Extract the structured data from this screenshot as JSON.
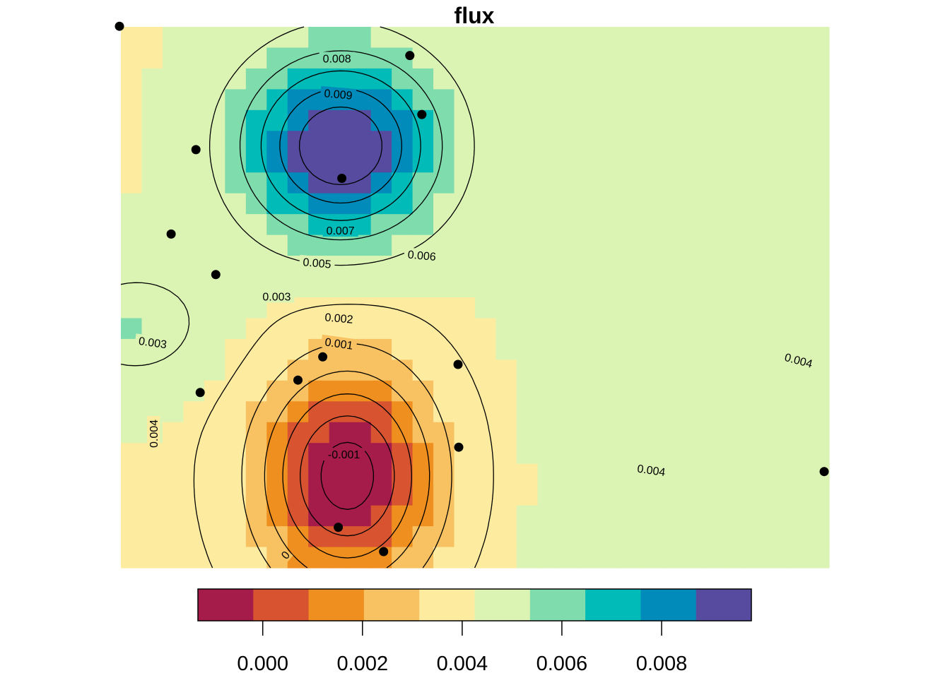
{
  "chart_data": {
    "type": "heatmap",
    "title": "flux",
    "xlabel": "",
    "ylabel": "",
    "colorbar": {
      "min": -0.0013,
      "max": 0.0098,
      "bin_colors": [
        "#a51c4a",
        "#d8532f",
        "#ef8f1f",
        "#f8c262",
        "#fdeba0",
        "#dcf4b3",
        "#7fdcad",
        "#00bbb7",
        "#008bba",
        "#574ba0"
      ],
      "tick_values": [
        0.0,
        0.002,
        0.004,
        0.006,
        0.008
      ],
      "tick_labels": [
        "0.000",
        "0.002",
        "0.004",
        "0.006",
        "0.008"
      ]
    },
    "field": {
      "base": 0.0042,
      "east_offset": 0.0002,
      "peaks": [
        {
          "cx": 0.31,
          "cy": 0.22,
          "sx": 0.13,
          "sy": 0.16,
          "amp": 0.0058
        },
        {
          "cx": 0.32,
          "cy": 0.83,
          "sx": 0.12,
          "sy": 0.2,
          "amp": -0.0058
        },
        {
          "cx": 0.02,
          "cy": 0.55,
          "sx": 0.12,
          "sy": 0.12,
          "amp": 0.0012
        }
      ]
    },
    "contour_labels": [
      {
        "text": "0.008",
        "x": 0.305,
        "y": 0.058,
        "angle": 0
      },
      {
        "text": "0.009",
        "x": 0.307,
        "y": 0.124,
        "angle": 5
      },
      {
        "text": "0.007",
        "x": 0.31,
        "y": 0.376,
        "angle": 0
      },
      {
        "text": "0.006",
        "x": 0.425,
        "y": 0.422,
        "angle": 5
      },
      {
        "text": "0.005",
        "x": 0.277,
        "y": 0.436,
        "angle": 5
      },
      {
        "text": "0.003",
        "x": 0.22,
        "y": 0.498,
        "angle": 0
      },
      {
        "text": "0.002",
        "x": 0.308,
        "y": 0.538,
        "angle": 5
      },
      {
        "text": "0.001",
        "x": 0.308,
        "y": 0.585,
        "angle": 8
      },
      {
        "text": "0.003",
        "x": 0.045,
        "y": 0.583,
        "angle": 8
      },
      {
        "text": "0.004",
        "x": 0.957,
        "y": 0.616,
        "angle": 15
      },
      {
        "text": "0.004",
        "x": 0.046,
        "y": 0.752,
        "angle": -90
      },
      {
        "text": "-0.001",
        "x": 0.315,
        "y": 0.79,
        "angle": 0
      },
      {
        "text": "0.004",
        "x": 0.749,
        "y": 0.819,
        "angle": 8
      },
      {
        "text": "0",
        "x": 0.232,
        "y": 0.976,
        "angle": -50
      }
    ],
    "points": [
      {
        "x": -0.002,
        "y": -0.001
      },
      {
        "x": 0.408,
        "y": 0.053
      },
      {
        "x": 0.425,
        "y": 0.162
      },
      {
        "x": 0.106,
        "y": 0.227
      },
      {
        "x": 0.312,
        "y": 0.28
      },
      {
        "x": 0.071,
        "y": 0.383
      },
      {
        "x": 0.134,
        "y": 0.458
      },
      {
        "x": 0.285,
        "y": 0.61
      },
      {
        "x": 0.476,
        "y": 0.624
      },
      {
        "x": 0.25,
        "y": 0.653
      },
      {
        "x": 0.112,
        "y": 0.676
      },
      {
        "x": 0.477,
        "y": 0.777
      },
      {
        "x": 0.307,
        "y": 0.925
      },
      {
        "x": 0.371,
        "y": 0.97
      },
      {
        "x": 0.993,
        "y": 0.822
      }
    ]
  }
}
